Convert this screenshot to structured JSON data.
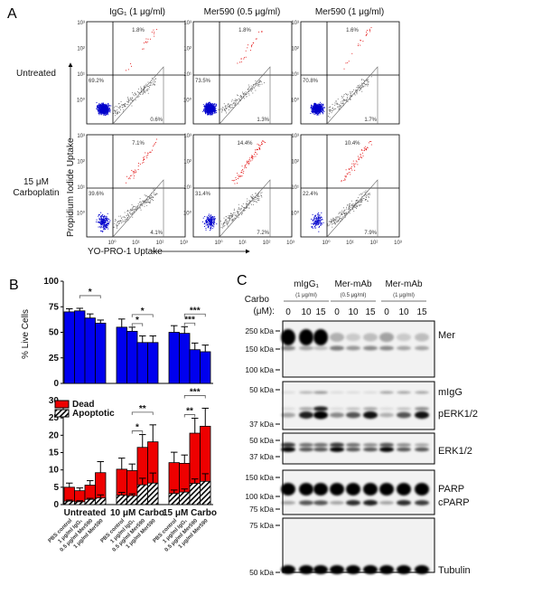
{
  "panel_a": {
    "label": "A",
    "columns": [
      "IgG₁ (1 μg/ml)",
      "Mer590 (0.5 μg/ml)",
      "Mer590 (1 μg/ml)"
    ],
    "rows": [
      "Untreated",
      "15 μM",
      "Carboplatin"
    ],
    "ylabel": "Propidium Iodide Uptake",
    "xlabel": "YO-PRO-1 Uptake",
    "ticks": [
      "10⁰",
      "10¹",
      "10²",
      "10³"
    ],
    "quadrants": [
      [
        {
          "top": "1.8%",
          "live": "69.2%",
          "apop": "0.6%"
        },
        {
          "top": "1.8%",
          "live": "73.5%",
          "apop": "1.3%"
        },
        {
          "top": "1.6%",
          "live": "70.8%",
          "apop": "1.7%"
        }
      ],
      [
        {
          "top": "7.1%",
          "live": "39.6%",
          "apop": "4.1%"
        },
        {
          "top": "14.4%",
          "live": "31.4%",
          "apop": "7.2%"
        },
        {
          "top": "10.4%",
          "live": "22.4%",
          "apop": "7.9%"
        }
      ]
    ],
    "colors": {
      "live": "#0000cc",
      "dead": "#e00000",
      "other": "#666666"
    }
  },
  "chart_data": [
    {
      "type": "bar",
      "panel": "B",
      "ylabel": "% Live Cells",
      "ylim": [
        0,
        100
      ],
      "yticks": [
        "0",
        "25",
        "50",
        "75",
        "100"
      ],
      "groups": [
        "Untreated",
        "10 μM Carbo",
        "15 μM Carbo"
      ],
      "categories": [
        "PBS control",
        "1 μg/ml IgG₁",
        "0.5 μg/ml Mer590",
        "1 μg/ml Mer590"
      ],
      "values": [
        [
          70,
          71,
          64,
          59
        ],
        [
          55,
          51,
          40,
          40
        ],
        [
          50,
          49,
          33,
          31
        ]
      ],
      "errors": [
        [
          3,
          2.5,
          4,
          3
        ],
        [
          8,
          4,
          6.5,
          6.5
        ],
        [
          6.5,
          6.5,
          6.5,
          6.5
        ]
      ],
      "significance": [
        {
          "group": 0,
          "from": 1,
          "to": 3,
          "label": "*"
        },
        {
          "group": 1,
          "from": 1,
          "to": 2,
          "label": "*"
        },
        {
          "group": 1,
          "from": 1,
          "to": 3,
          "label": "*"
        },
        {
          "group": 2,
          "from": 1,
          "to": 2,
          "label": "***"
        },
        {
          "group": 2,
          "from": 1,
          "to": 3,
          "label": "***"
        }
      ],
      "color": "#0000ee"
    },
    {
      "type": "bar",
      "stacked": true,
      "panel": "B",
      "ylim": [
        0,
        30
      ],
      "yticks": [
        "0",
        "5",
        "10",
        "15",
        "20",
        "25",
        "30"
      ],
      "legend": [
        "Dead",
        "Apoptotic"
      ],
      "legend_position": "top-left",
      "groups": [
        "Untreated",
        "10 μM Carbo",
        "15 μM Carbo"
      ],
      "categories": [
        "PBS control",
        "1 μg/ml IgG₁",
        "0.5 μg/ml Mer590",
        "1 μg/ml Mer590"
      ],
      "series": [
        {
          "name": "Dead",
          "values": [
            [
              5,
              4,
              5.6,
              9.2
            ],
            [
              10.2,
              9.8,
              16.5,
              18.1
            ],
            [
              12.1,
              11.9,
              20.6,
              22.6
            ]
          ],
          "errors": [
            [
              1.2,
              0.8,
              1.3,
              3.2
            ],
            [
              3.2,
              1.9,
              3.7,
              4.9
            ],
            [
              3,
              2.4,
              4.3,
              5.2
            ]
          ]
        },
        {
          "name": "Apoptotic",
          "values": [
            [
              1,
              0.8,
              1.5,
              1.9
            ],
            [
              2.7,
              2.6,
              5.7,
              6.2
            ],
            [
              3.2,
              3.6,
              6.1,
              6.7
            ]
          ],
          "errors": [
            [
              0.3,
              0.3,
              0.3,
              0.9
            ],
            [
              0.8,
              0.5,
              1.9,
              2.9
            ],
            [
              1,
              0.9,
              1.3,
              2.2
            ]
          ]
        }
      ],
      "significance": [
        {
          "group": 1,
          "from": 1,
          "to": 2,
          "label": "*"
        },
        {
          "group": 1,
          "from": 1,
          "to": 3,
          "label": "**"
        },
        {
          "group": 2,
          "from": 1,
          "to": 2,
          "label": "**"
        },
        {
          "group": 2,
          "from": 1,
          "to": 3,
          "label": "***"
        }
      ],
      "colors": {
        "dead": "#ee0000",
        "apoptotic": "hatched"
      }
    }
  ],
  "panel_b": {
    "label": "B"
  },
  "panel_c": {
    "label": "C",
    "groups": [
      {
        "name": "mIgG₁",
        "conc": "(1 μg/ml)"
      },
      {
        "name": "Mer-mAb",
        "conc": "(0.5 μg/ml)"
      },
      {
        "name": "Mer-mAb",
        "conc": "(1 μg/ml)"
      }
    ],
    "carbo_label": [
      "Carbo",
      "(μM):"
    ],
    "lanes": [
      "0",
      "10",
      "15",
      "0",
      "10",
      "15",
      "0",
      "10",
      "15"
    ],
    "blots": [
      {
        "markers": [
          "250 kDa",
          "150 kDa",
          "100 kDa"
        ],
        "bands": [
          {
            "label": "Mer",
            "intensity": [
              1,
              1,
              1,
              0.25,
              0.15,
              0.2,
              0.3,
              0.15,
              0.2
            ]
          },
          {
            "label": "",
            "intensity": [
              0.4,
              0.3,
              0.2,
              0.45,
              0.35,
              0.4,
              0.4,
              0.3,
              0.3
            ]
          }
        ]
      },
      {
        "markers": [
          "50 kDa",
          "37 kDa"
        ],
        "bands": [
          {
            "label": "mIgG",
            "intensity": [
              0.1,
              0.25,
              0.35,
              0.1,
              0.1,
              0.1,
              0.3,
              0.3,
              0.3
            ]
          },
          {
            "label": "",
            "intensity": [
              0.1,
              0.3,
              0.8,
              0.1,
              0.2,
              0.3,
              0.1,
              0.2,
              0.4
            ]
          },
          {
            "label": "pERK1/2",
            "intensity": [
              0.3,
              0.8,
              1,
              0.4,
              0.6,
              0.85,
              0.25,
              0.6,
              0.85
            ]
          }
        ]
      },
      {
        "markers": [
          "50 kDa",
          "37 kDa"
        ],
        "bands": [
          {
            "label": "ERK1/2",
            "intensity": [
              0.7,
              0.5,
              0.5,
              0.7,
              0.5,
              0.4,
              0.6,
              0.4,
              0.3
            ]
          },
          {
            "label": "",
            "intensity": [
              0.9,
              0.6,
              0.6,
              0.9,
              0.6,
              0.6,
              0.9,
              0.6,
              0.6
            ]
          }
        ]
      },
      {
        "markers": [
          "150 kDa",
          "100 kDa",
          "75 kDa"
        ],
        "bands": [
          {
            "label": "PARP",
            "intensity": [
              1,
              1,
              1,
              1,
              1,
              1,
              1,
              1,
              1
            ]
          },
          {
            "label": "cPARP",
            "intensity": [
              0.3,
              0.6,
              0.6,
              0.3,
              0.75,
              0.8,
              0.3,
              0.75,
              0.7
            ]
          }
        ]
      },
      {
        "markers": [
          "75 kDa",
          "50 kDa"
        ],
        "bands": [
          {
            "label": "Tubulin",
            "intensity": [
              1,
              1,
              1,
              1,
              1,
              1,
              1,
              1,
              1
            ]
          }
        ]
      }
    ]
  }
}
